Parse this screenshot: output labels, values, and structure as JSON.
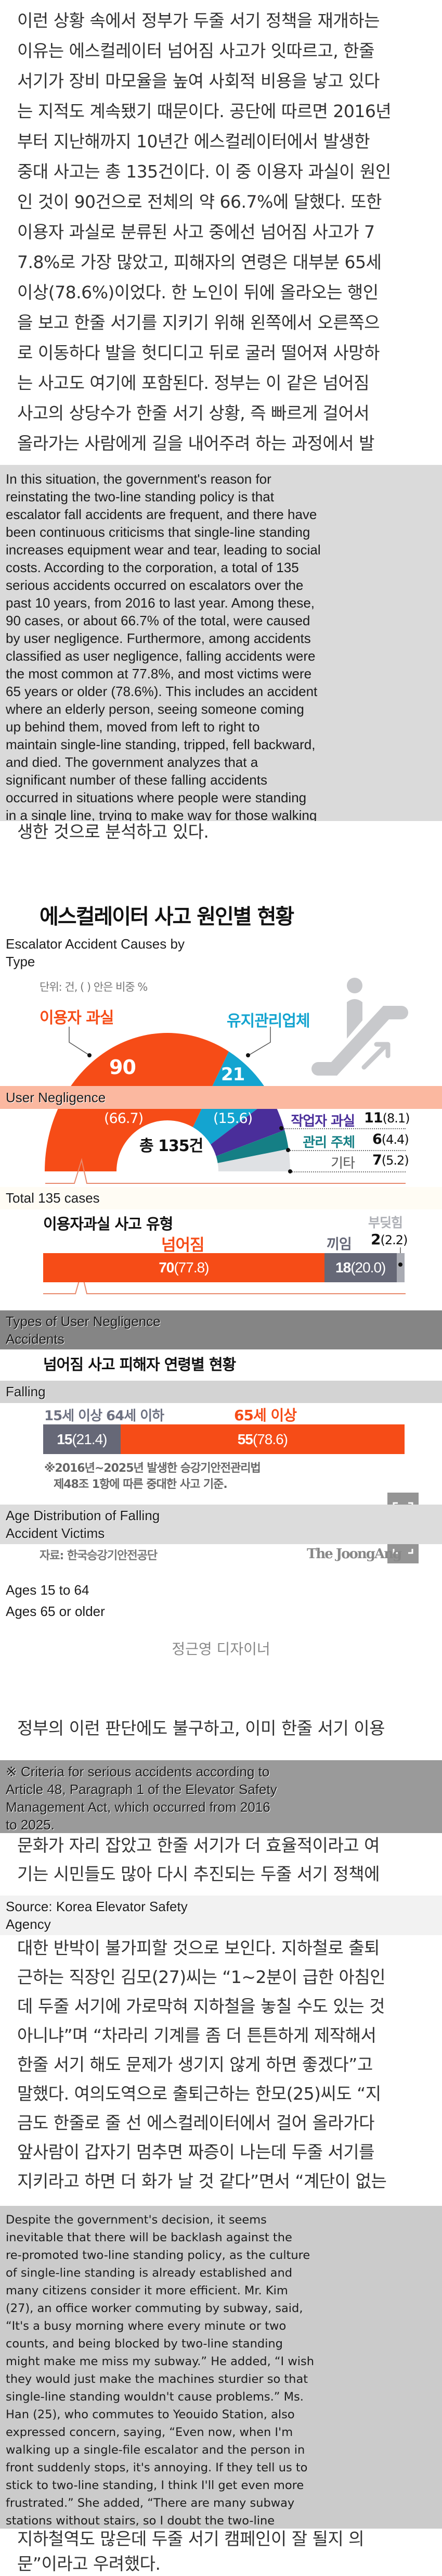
{
  "article": {
    "paragraph1": [
      "이런 상황 속에서 정부가 두줄 서기 정책을 재개하는",
      "이유는 에스컬레이터 넘어짐 사고가 잇따르고, 한줄",
      "서기가 장비 마모율을 높여 사회적 비용을 낳고 있다",
      "는 지적도 계속됐기 때문이다. 공단에 따르면 2016년",
      "부터 지난해까지 10년간 에스컬레이터에서 발생한",
      "중대 사고는 총 135건이다. 이 중 이용자 과실이 원인",
      "인 것이 90건으로 전체의 약 66.7%에 달했다. 또한",
      "이용자 과실로 분류된 사고 중에선 넘어짐 사고가 7",
      "7.8%로 가장 많았고, 피해자의 연령은 대부분 65세",
      "이상(78.6%)이었다. 한 노인이 뒤에 올라오는 행인",
      "을 보고 한줄 서기를 지키기 위해 왼쪽에서 오른쪽으",
      "로 이동하다 발을 헛디디고 뒤로 굴러 떨어져 사망하",
      "는 사고도 여기에 포함된다. 정부는 이 같은 넘어짐",
      "사고의 상당수가 한줄 서기 상황, 즉 빠르게 걸어서",
      "올라가는 사람에게 길을 내어주려 하는 과정에서 발",
      "생한 것으로 분석하고 있다."
    ],
    "paragraph2": [
      "정부의 이런 판단에도 불구하고, 이미 한줄 서기 이용",
      "문화가 자리 잡았고 한줄 서기가 더 효율적이라고 여",
      "기는 시민들도 많아 다시 추진되는 두줄 서기 정책에",
      "대한 반박이 불가피할 것으로 보인다. 지하철로 출퇴",
      "근하는 직장인 김모(27)씨는 “1~2분이 급한 아침인",
      "데 두줄 서기에 가로막혀 지하철을 놓칠 수도 있는 것",
      "아니냐”며 “차라리 기계를 좀 더 튼튼하게 제작해서",
      "한줄 서기 해도 문제가 생기지 않게 하면 좋겠다”고",
      "말했다. 여의도역으로 출퇴근하는 한모(25)씨도 “지",
      "금도 한줄로 줄 선 에스컬레이터에서 걸어 올라가다",
      "앞사람이 갑자기 멈추면 짜증이 나는데 두줄 서기를",
      "지키라고 하면 더 화가 날 것 같다”면서 “계단이 없는",
      "지하철역도 많은데 두줄 서기 캠페인이 잘 될지 의",
      "문”이라고 우려했다."
    ],
    "designer_credit": "정근영 디자이너"
  },
  "translations": {
    "para1": [
      "In this situation, the government's reason for",
      "reinstating the two-line standing policy is that",
      "escalator fall accidents are frequent, and there have",
      "been continuous criticisms that single-line standing",
      "increases equipment wear and tear, leading to social",
      "costs. According to the corporation, a total of 135",
      "serious accidents occurred on escalators over the",
      "past 10 years, from 2016 to last year. Among these,",
      "90 cases, or about 66.7% of the total, were caused",
      "by user negligence. Furthermore, among accidents",
      "classified as user negligence, falling accidents were",
      "the most common at 77.8%, and most victims were",
      "65 years or older (78.6%). This includes an accident",
      "where an elderly person, seeing someone coming",
      "up behind them, moved from left to right to",
      "maintain single-line standing, tripped, fell backward,",
      "and died. The government analyzes that a",
      "significant number of these falling accidents",
      "occurred in situations where people were standing",
      "in a single line, trying to make way for those walking"
    ],
    "chart_title": [
      "Escalator Accident Causes by",
      "Type"
    ],
    "user_negligence": [
      "User Negligence"
    ],
    "total": [
      "Total 135 cases"
    ],
    "types": [
      "Types of User Negligence",
      "Accidents"
    ],
    "falling": [
      "Falling"
    ],
    "age_dist": [
      "Age Distribution of Falling",
      "Accident Victims"
    ],
    "ages_young": "Ages 15 to 64",
    "ages_old": "Ages 65 or older",
    "criteria": [
      "※ Criteria for serious accidents according to",
      "Article 48, Paragraph 1 of the Elevator Safety",
      "Management Act, which occurred from 2016",
      "to 2025."
    ],
    "source": [
      "Source: Korea Elevator Safety",
      "Agency"
    ],
    "para2": [
      "Despite the government's decision, it seems",
      "inevitable that there will be backlash against the",
      "re-promoted two-line standing policy, as the culture",
      "of single-line standing is already established and",
      "many citizens consider it more efficient. Mr. Kim",
      "(27), an office worker commuting by subway, said,",
      "“It's a busy morning where every minute or two",
      "counts, and being blocked by two-line standing",
      "might make me miss my subway.” He added, “I wish",
      "they would just make the machines sturdier so that",
      "single-line standing wouldn't cause problems.” Ms.",
      "Han (25), who commutes to Yeouido Station, also",
      "expressed concern, saying, “Even now, when I'm",
      "walking up a single-file escalator and the person in",
      "front suddenly stops, it's annoying. If they tell us to",
      "stick to two-line standing, I think I'll get even more",
      "frustrated.” She added, “There are many subway",
      "stations without stairs, so I doubt the two-line"
    ]
  },
  "infographic": {
    "title": "에스컬레이터 사고 원인별 현황",
    "unit": "단위: 건, ( ) 안은 비중 %",
    "label_user": "이용자 과실",
    "label_maint": "유지관리업체",
    "total_label": "총 135건",
    "pie_labels": [
      {
        "value": "90",
        "pct": "(66.7)"
      },
      {
        "value": "21",
        "pct": "(15.6)"
      }
    ],
    "legend": [
      {
        "label": "작업자 과실",
        "value": "11",
        "pct": "(8.1)"
      },
      {
        "label": "관리 주체",
        "value": "6",
        "pct": "(4.4)"
      },
      {
        "label": "기타",
        "value": "7",
        "pct": "(5.2)"
      }
    ],
    "types_title": "이용자과실 사고 유형",
    "type_fall": "넘어짐",
    "type_caught": "끼임",
    "type_bump": "부딪힘",
    "bump_value": "2",
    "bump_pct": "(2.2)",
    "bar1": [
      {
        "value": "70",
        "pct": "(77.8)"
      },
      {
        "value": "18",
        "pct": "(20.0)"
      }
    ],
    "age_title": "넘어짐 사고 피해자 연령별 현황",
    "age_young": "15세 이상 64세 이하",
    "age_old": "65세 이상",
    "bar2": [
      {
        "value": "15",
        "pct": "(21.4)"
      },
      {
        "value": "55",
        "pct": "(78.6)"
      }
    ],
    "footnote": [
      "※2016년~2025년 발생한 승강기안전관리법",
      "제48조 1항에 따른 중대한 사고 기준."
    ],
    "source": "자료: 한국승강기안전공단",
    "logo": "The JoongAng"
  },
  "colors": {
    "orange": "#f64c17",
    "blue": "#14a4d0",
    "purple": "#4a2e9a",
    "teal": "#157f85",
    "lightgray": "#dfe1e4",
    "slate": "#666877"
  },
  "chart_data": [
    {
      "type": "pie",
      "title": "에스컬레이터 사고 원인별 현황",
      "unit": "건",
      "categories": [
        "이용자 과실",
        "유지관리업체",
        "작업자 과실",
        "관리 주체",
        "기타"
      ],
      "values": [
        90,
        21,
        11,
        6,
        7
      ],
      "percent": [
        66.7,
        15.6,
        8.1,
        4.4,
        5.2
      ],
      "total": 135
    },
    {
      "type": "bar",
      "title": "이용자과실 사고 유형",
      "categories": [
        "넘어짐",
        "끼임",
        "부딪힘"
      ],
      "values": [
        70,
        18,
        2
      ],
      "percent": [
        77.8,
        20.0,
        2.2
      ]
    },
    {
      "type": "bar",
      "title": "넘어짐 사고 피해자 연령별 현황",
      "categories": [
        "15세 이상 64세 이하",
        "65세 이상"
      ],
      "values": [
        15,
        55
      ],
      "percent": [
        21.4,
        78.6
      ]
    }
  ]
}
